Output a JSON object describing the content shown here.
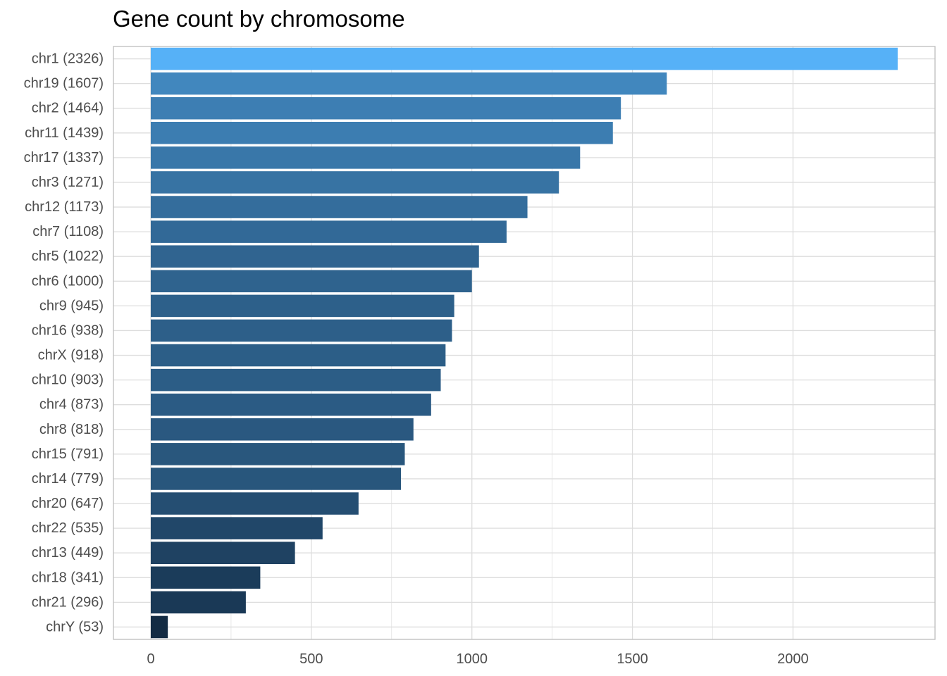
{
  "chart_data": {
    "type": "bar",
    "orientation": "horizontal",
    "title": "Gene count by chromosome",
    "xlabel": "",
    "ylabel": "",
    "categories": [
      "chr1 (2326)",
      "chr19 (1607)",
      "chr2 (1464)",
      "chr11 (1439)",
      "chr17 (1337)",
      "chr3 (1271)",
      "chr12 (1173)",
      "chr7 (1108)",
      "chr5 (1022)",
      "chr6 (1000)",
      "chr9 (945)",
      "chr16 (938)",
      "chrX (918)",
      "chr10 (903)",
      "chr4 (873)",
      "chr8 (818)",
      "chr15 (791)",
      "chr14 (779)",
      "chr20 (647)",
      "chr22 (535)",
      "chr13 (449)",
      "chr18 (341)",
      "chr21 (296)",
      "chrY (53)"
    ],
    "values": [
      2326,
      1607,
      1464,
      1439,
      1337,
      1271,
      1173,
      1108,
      1022,
      1000,
      945,
      938,
      918,
      903,
      873,
      818,
      791,
      779,
      647,
      535,
      449,
      341,
      296,
      53
    ],
    "xlim": [
      -116.3,
      2442.3
    ],
    "x_ticks": [
      0,
      500,
      1000,
      1500,
      2000
    ],
    "x_tick_labels": [
      "0",
      "500",
      "1000",
      "1500",
      "2000"
    ],
    "grid": true,
    "legend": "none",
    "colors": {
      "low": "#132b43",
      "high": "#56b1f7",
      "grid": "#dddddd",
      "panel_border": "#bdbdbd"
    }
  }
}
